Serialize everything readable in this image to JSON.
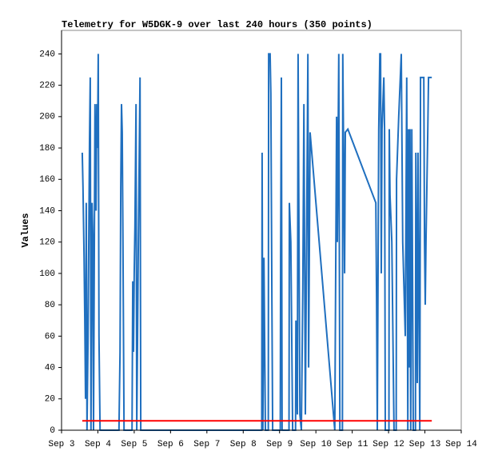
{
  "chart_data": {
    "type": "line",
    "title": "Telemetry for W5DGK-9 over last 240 hours (350 points)",
    "y_label": "Values",
    "xlim": [
      3,
      14
    ],
    "xticks": [
      {
        "value": 3,
        "label": "Sep 3"
      },
      {
        "value": 4,
        "label": "Sep 4"
      },
      {
        "value": 5,
        "label": "Sep 5"
      },
      {
        "value": 6,
        "label": "Sep 6"
      },
      {
        "value": 7,
        "label": "Sep 7"
      },
      {
        "value": 8,
        "label": "Sep 8"
      },
      {
        "value": 9,
        "label": "Sep 9"
      },
      {
        "value": 10,
        "label": "Sep 10"
      },
      {
        "value": 11,
        "label": "Sep 11"
      },
      {
        "value": 12,
        "label": "Sep 12"
      },
      {
        "value": 13,
        "label": "Sep 13"
      },
      {
        "value": 14,
        "label": "Sep 14"
      }
    ],
    "ylim": [
      0,
      255
    ],
    "yticks": [
      0,
      20,
      40,
      60,
      80,
      100,
      120,
      140,
      160,
      180,
      200,
      220,
      240
    ],
    "series": [
      {
        "color": "#1f6fbf",
        "x": [
          3.57,
          3.59,
          3.62,
          3.64,
          3.66,
          3.68,
          3.7,
          3.73,
          3.77,
          3.79,
          3.81,
          3.84,
          3.86,
          3.88,
          3.92,
          3.95,
          3.97,
          3.99,
          4.01,
          4.03,
          4.06,
          4.58,
          4.61,
          4.63,
          4.65,
          4.67,
          4.69,
          4.72,
          4.94,
          4.96,
          4.98,
          5.0,
          5.02,
          5.05,
          5.07,
          5.11,
          5.16,
          5.18,
          8.51,
          8.52,
          8.54,
          8.57,
          8.59,
          8.61,
          8.69,
          8.7,
          8.74,
          8.76,
          8.79,
          8.81,
          9.02,
          9.03,
          9.05,
          9.07,
          9.26,
          9.27,
          9.31,
          9.36,
          9.44,
          9.45,
          9.49,
          9.51,
          9.56,
          9.6,
          9.64,
          9.67,
          9.71,
          9.78,
          9.8,
          9.84,
          10.52,
          10.57,
          10.59,
          10.63,
          10.66,
          10.73,
          10.74,
          10.79,
          10.81,
          10.88,
          11.65,
          11.67,
          11.69,
          11.73,
          11.76,
          11.78,
          11.8,
          11.82,
          11.87,
          11.89,
          11.91,
          12.01,
          12.02,
          12.04,
          12.09,
          12.11,
          12.15,
          12.21,
          12.22,
          12.28,
          12.35,
          12.39,
          12.46,
          12.5,
          12.53,
          12.55,
          12.57,
          12.59,
          12.61,
          12.64,
          12.66,
          12.68,
          12.74,
          12.75,
          12.79,
          12.81,
          12.86,
          12.88,
          12.97,
          12.99,
          13.01,
          13.03,
          13.08,
          13.1,
          13.19
        ],
        "values": [
          177,
          155,
          110,
          70,
          20,
          145,
          0,
          60,
          185,
          225,
          0,
          145,
          125,
          0,
          208,
          140,
          208,
          180,
          240,
          60,
          0,
          0,
          50,
          155,
          208,
          190,
          120,
          0,
          0,
          95,
          50,
          100,
          130,
          208,
          0,
          110,
          225,
          0,
          0,
          177,
          0,
          110,
          55,
          0,
          0,
          240,
          240,
          215,
          80,
          0,
          0,
          110,
          225,
          0,
          0,
          145,
          120,
          0,
          0,
          70,
          10,
          240,
          10,
          0,
          90,
          208,
          10,
          240,
          40,
          190,
          0,
          200,
          120,
          240,
          0,
          0,
          240,
          100,
          190,
          192,
          145,
          85,
          0,
          192,
          240,
          240,
          100,
          192,
          225,
          192,
          0,
          0,
          192,
          150,
          120,
          80,
          0,
          0,
          160,
          200,
          240,
          120,
          60,
          225,
          0,
          192,
          40,
          192,
          0,
          192,
          100,
          0,
          0,
          177,
          30,
          177,
          0,
          225,
          225,
          120,
          80,
          120,
          192,
          225,
          225
        ]
      },
      {
        "color": "#ff0000",
        "x": [
          3.57,
          13.19
        ],
        "values": [
          6,
          6
        ]
      }
    ]
  }
}
